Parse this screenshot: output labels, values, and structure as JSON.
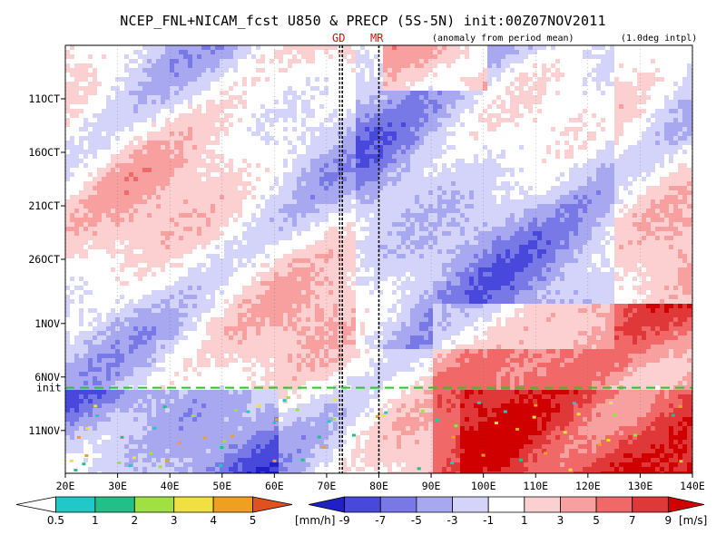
{
  "chart_data": {
    "type": "heatmap",
    "title": "NCEP_FNL+NICAM_fcst U850 & PRECP (5S-5N) init:00Z07NOV2011",
    "subtitle_anomaly": "(anomaly from period mean)",
    "subtitle_resolution": "(1.0deg intpl)",
    "x_axis": {
      "range_deg_east": [
        20,
        140
      ],
      "ticks": [
        {
          "value": 20,
          "label": "20E"
        },
        {
          "value": 30,
          "label": "30E"
        },
        {
          "value": 40,
          "label": "40E"
        },
        {
          "value": 50,
          "label": "50E"
        },
        {
          "value": 60,
          "label": "60E"
        },
        {
          "value": 70,
          "label": "70E"
        },
        {
          "value": 80,
          "label": "80E"
        },
        {
          "value": 90,
          "label": "90E"
        },
        {
          "value": 100,
          "label": "100E"
        },
        {
          "value": 110,
          "label": "110E"
        },
        {
          "value": 120,
          "label": "120E"
        },
        {
          "value": 130,
          "label": "130E"
        },
        {
          "value": 140,
          "label": "140E"
        }
      ]
    },
    "y_axis": {
      "range": [
        "2011-10-06",
        "2011-11-15"
      ],
      "direction": "time increases downward",
      "ticks": [
        {
          "date": "2011-10-11",
          "label": "11OCT"
        },
        {
          "date": "2011-10-16",
          "label": "16OCT"
        },
        {
          "date": "2011-10-21",
          "label": "21OCT"
        },
        {
          "date": "2011-10-26",
          "label": "26OCT"
        },
        {
          "date": "2011-11-01",
          "label": "1NOV"
        },
        {
          "date": "2011-11-06",
          "label": "6NOV"
        },
        {
          "date": "2011-11-11",
          "label": "11NOV"
        }
      ]
    },
    "init_line": {
      "label": "init",
      "date": "2011-11-07",
      "color": "#22cc22"
    },
    "vertical_markers": [
      {
        "label": "GD",
        "lon_deg_east": 73
      },
      {
        "label": "MR",
        "lon_deg_east": 80
      }
    ],
    "u850_colorbar": {
      "unit": "[m/s]",
      "labels": [
        "-9",
        "-7",
        "-5",
        "-3",
        "-1",
        "1",
        "3",
        "5",
        "7",
        "9"
      ],
      "colors": [
        "#2020c8",
        "#4848dc",
        "#7878e6",
        "#a8a8f0",
        "#d4d4fa",
        "#ffffff",
        "#fcd0d0",
        "#f8a0a0",
        "#f06868",
        "#e03838",
        "#d00000"
      ]
    },
    "precip_colorbar": {
      "unit": "[mm/h]",
      "labels": [
        "0.5",
        "1",
        "2",
        "3",
        "4",
        "5"
      ],
      "colors": [
        "#ffffff",
        "#20c8c8",
        "#20c088",
        "#a0e040",
        "#f0e040",
        "#f0a020",
        "#e05020"
      ]
    },
    "grid": true,
    "field_note": "U850 anomaly: easterly (blue) regimes dominate late October west of 110E; strong westerly (red) anomalies build east of 90E after 1NOV, strongest 100E-140E after init."
  }
}
